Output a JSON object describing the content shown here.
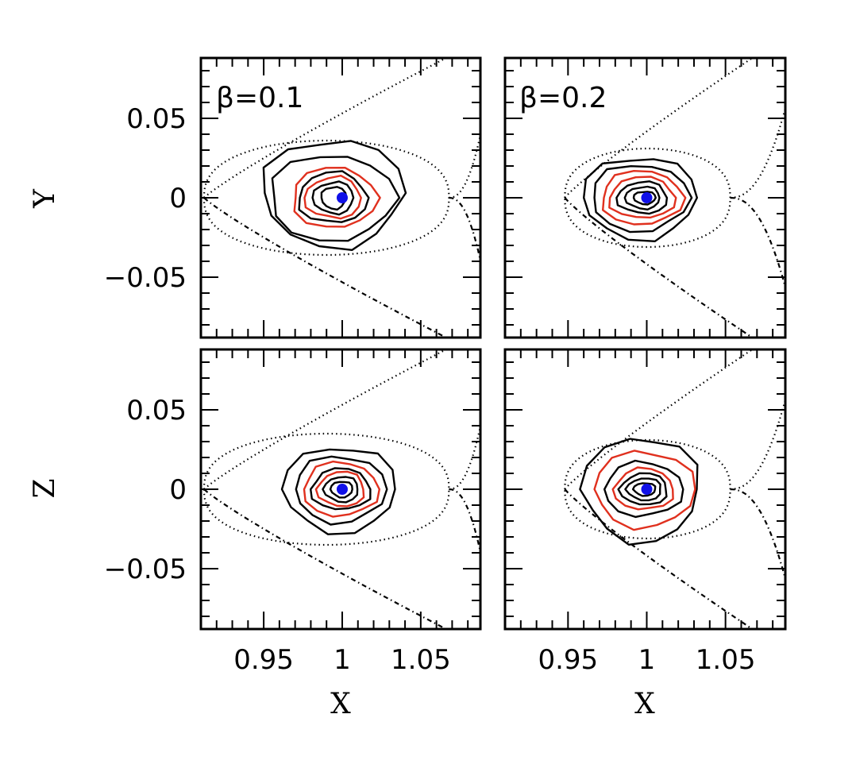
{
  "chart_data": {
    "type": "contour",
    "layout": "2x2 grid, shared axes",
    "x_axis": {
      "label": "X",
      "range": [
        0.91,
        1.088
      ],
      "ticks": [
        0.95,
        1,
        1.05
      ],
      "tick_labels": [
        "0.95",
        "1",
        "1.05"
      ]
    },
    "y_axis": {
      "range": [
        -0.088,
        0.088
      ],
      "ticks": [
        -0.05,
        0,
        0.05
      ],
      "tick_labels": [
        "−0.05",
        "0",
        "0.05"
      ]
    },
    "rows": [
      {
        "id": "top",
        "ylabel": "Y"
      },
      {
        "id": "bottom",
        "ylabel": "Z"
      }
    ],
    "columns": [
      {
        "id": "left",
        "label": "β=0.1"
      },
      {
        "id": "right",
        "label": "β=0.2"
      }
    ],
    "marker": {
      "x": 1.0,
      "y": 0.0,
      "color": "#1010e8",
      "description": "central point"
    },
    "colors": {
      "black_contour": "#000000",
      "red_contour": "#e0301e",
      "marker": "#1010e8"
    },
    "panels": [
      {
        "row": "top",
        "col": "left",
        "contours": [
          {
            "color": "black",
            "cx": 1.0,
            "cy": 0.0,
            "rx": 0.045,
            "ry": 0.034,
            "dx": -0.004,
            "dy": 0.003
          },
          {
            "color": "black",
            "cx": 1.0,
            "cy": 0.0,
            "rx": 0.04,
            "ry": 0.027,
            "dx": -0.005,
            "dy": 0.0
          },
          {
            "color": "red",
            "cx": 1.0,
            "cy": 0.0,
            "rx": 0.027,
            "ry": 0.019,
            "dx": -0.004,
            "dy": 0.0
          },
          {
            "color": "black",
            "cx": 1.0,
            "cy": 0.0,
            "rx": 0.022,
            "ry": 0.016,
            "dx": -0.005,
            "dy": 0.0
          },
          {
            "color": "red",
            "cx": 1.0,
            "cy": 0.0,
            "rx": 0.018,
            "ry": 0.013,
            "dx": -0.005,
            "dy": 0.0
          },
          {
            "color": "black",
            "cx": 1.0,
            "cy": 0.0,
            "rx": 0.013,
            "ry": 0.01,
            "dx": -0.005,
            "dy": 0.0
          },
          {
            "color": "black",
            "cx": 1.0,
            "cy": 0.0,
            "rx": 0.008,
            "ry": 0.007,
            "dx": -0.005,
            "dy": 0.0
          }
        ],
        "separatrix": {
          "x_saddle": 1.068,
          "x_left": 0.912,
          "inner_ry": 0.036
        }
      },
      {
        "row": "top",
        "col": "right",
        "contours": [
          {
            "color": "black",
            "cx": 1.0,
            "cy": 0.0,
            "rx": 0.036,
            "ry": 0.026,
            "dx": -0.003,
            "dy": 0.0
          },
          {
            "color": "black",
            "cx": 1.0,
            "cy": 0.0,
            "rx": 0.031,
            "ry": 0.021,
            "dx": -0.003,
            "dy": 0.0
          },
          {
            "color": "red",
            "cx": 1.0,
            "cy": 0.0,
            "rx": 0.026,
            "ry": 0.017,
            "dx": -0.002,
            "dy": 0.0
          },
          {
            "color": "red",
            "cx": 1.0,
            "cy": 0.0,
            "rx": 0.021,
            "ry": 0.013,
            "dx": -0.002,
            "dy": 0.0
          },
          {
            "color": "black",
            "cx": 1.0,
            "cy": 0.0,
            "rx": 0.016,
            "ry": 0.01,
            "dx": -0.002,
            "dy": 0.0
          },
          {
            "color": "black",
            "cx": 1.0,
            "cy": 0.0,
            "rx": 0.011,
            "ry": 0.007,
            "dx": -0.002,
            "dy": 0.0
          },
          {
            "color": "black",
            "cx": 1.0,
            "cy": 0.0,
            "rx": 0.007,
            "ry": 0.004,
            "dx": -0.001,
            "dy": 0.0
          }
        ],
        "separatrix": {
          "x_saddle": 1.053,
          "x_left": 0.948,
          "inner_ry": 0.031
        }
      },
      {
        "row": "bottom",
        "col": "left",
        "contours": [
          {
            "color": "black",
            "cx": 1.0,
            "cy": 0.0,
            "rx": 0.036,
            "ry": 0.027,
            "dx": 0.0,
            "dy": 0.0
          },
          {
            "color": "black",
            "cx": 1.0,
            "cy": 0.0,
            "rx": 0.029,
            "ry": 0.021,
            "dx": 0.0,
            "dy": 0.0
          },
          {
            "color": "red",
            "cx": 1.0,
            "cy": 0.0,
            "rx": 0.024,
            "ry": 0.017,
            "dx": 0.0,
            "dy": 0.0
          },
          {
            "color": "black",
            "cx": 1.0,
            "cy": 0.0,
            "rx": 0.019,
            "ry": 0.013,
            "dx": 0.0,
            "dy": 0.0
          },
          {
            "color": "red",
            "cx": 1.0,
            "cy": 0.0,
            "rx": 0.015,
            "ry": 0.011,
            "dx": 0.0,
            "dy": 0.0
          },
          {
            "color": "black",
            "cx": 1.0,
            "cy": 0.0,
            "rx": 0.011,
            "ry": 0.008,
            "dx": 0.0,
            "dy": 0.0
          },
          {
            "color": "black",
            "cx": 1.0,
            "cy": 0.0,
            "rx": 0.007,
            "ry": 0.005,
            "dx": 0.0,
            "dy": 0.0
          }
        ],
        "separatrix": {
          "x_saddle": 1.068,
          "x_left": 0.912,
          "inner_ry": 0.035
        }
      },
      {
        "row": "bottom",
        "col": "right",
        "contours": [
          {
            "color": "black",
            "cx": 1.0,
            "cy": 0.0,
            "rx": 0.037,
            "ry": 0.033,
            "dx": -0.002,
            "dy": 0.0
          },
          {
            "color": "red",
            "cx": 1.0,
            "cy": 0.0,
            "rx": 0.032,
            "ry": 0.024,
            "dx": 0.0,
            "dy": 0.0
          },
          {
            "color": "black",
            "cx": 1.0,
            "cy": 0.0,
            "rx": 0.025,
            "ry": 0.017,
            "dx": -0.001,
            "dy": 0.0
          },
          {
            "color": "red",
            "cx": 1.0,
            "cy": 0.0,
            "rx": 0.019,
            "ry": 0.013,
            "dx": -0.001,
            "dy": 0.0
          },
          {
            "color": "black",
            "cx": 1.0,
            "cy": 0.0,
            "rx": 0.015,
            "ry": 0.01,
            "dx": -0.001,
            "dy": 0.0
          },
          {
            "color": "black",
            "cx": 1.0,
            "cy": 0.0,
            "rx": 0.011,
            "ry": 0.007,
            "dx": -0.001,
            "dy": 0.0
          },
          {
            "color": "black",
            "cx": 1.0,
            "cy": 0.0,
            "rx": 0.007,
            "ry": 0.004,
            "dx": -0.001,
            "dy": 0.0
          }
        ],
        "separatrix": {
          "x_saddle": 1.053,
          "x_left": 0.948,
          "inner_ry": 0.031
        }
      }
    ]
  }
}
